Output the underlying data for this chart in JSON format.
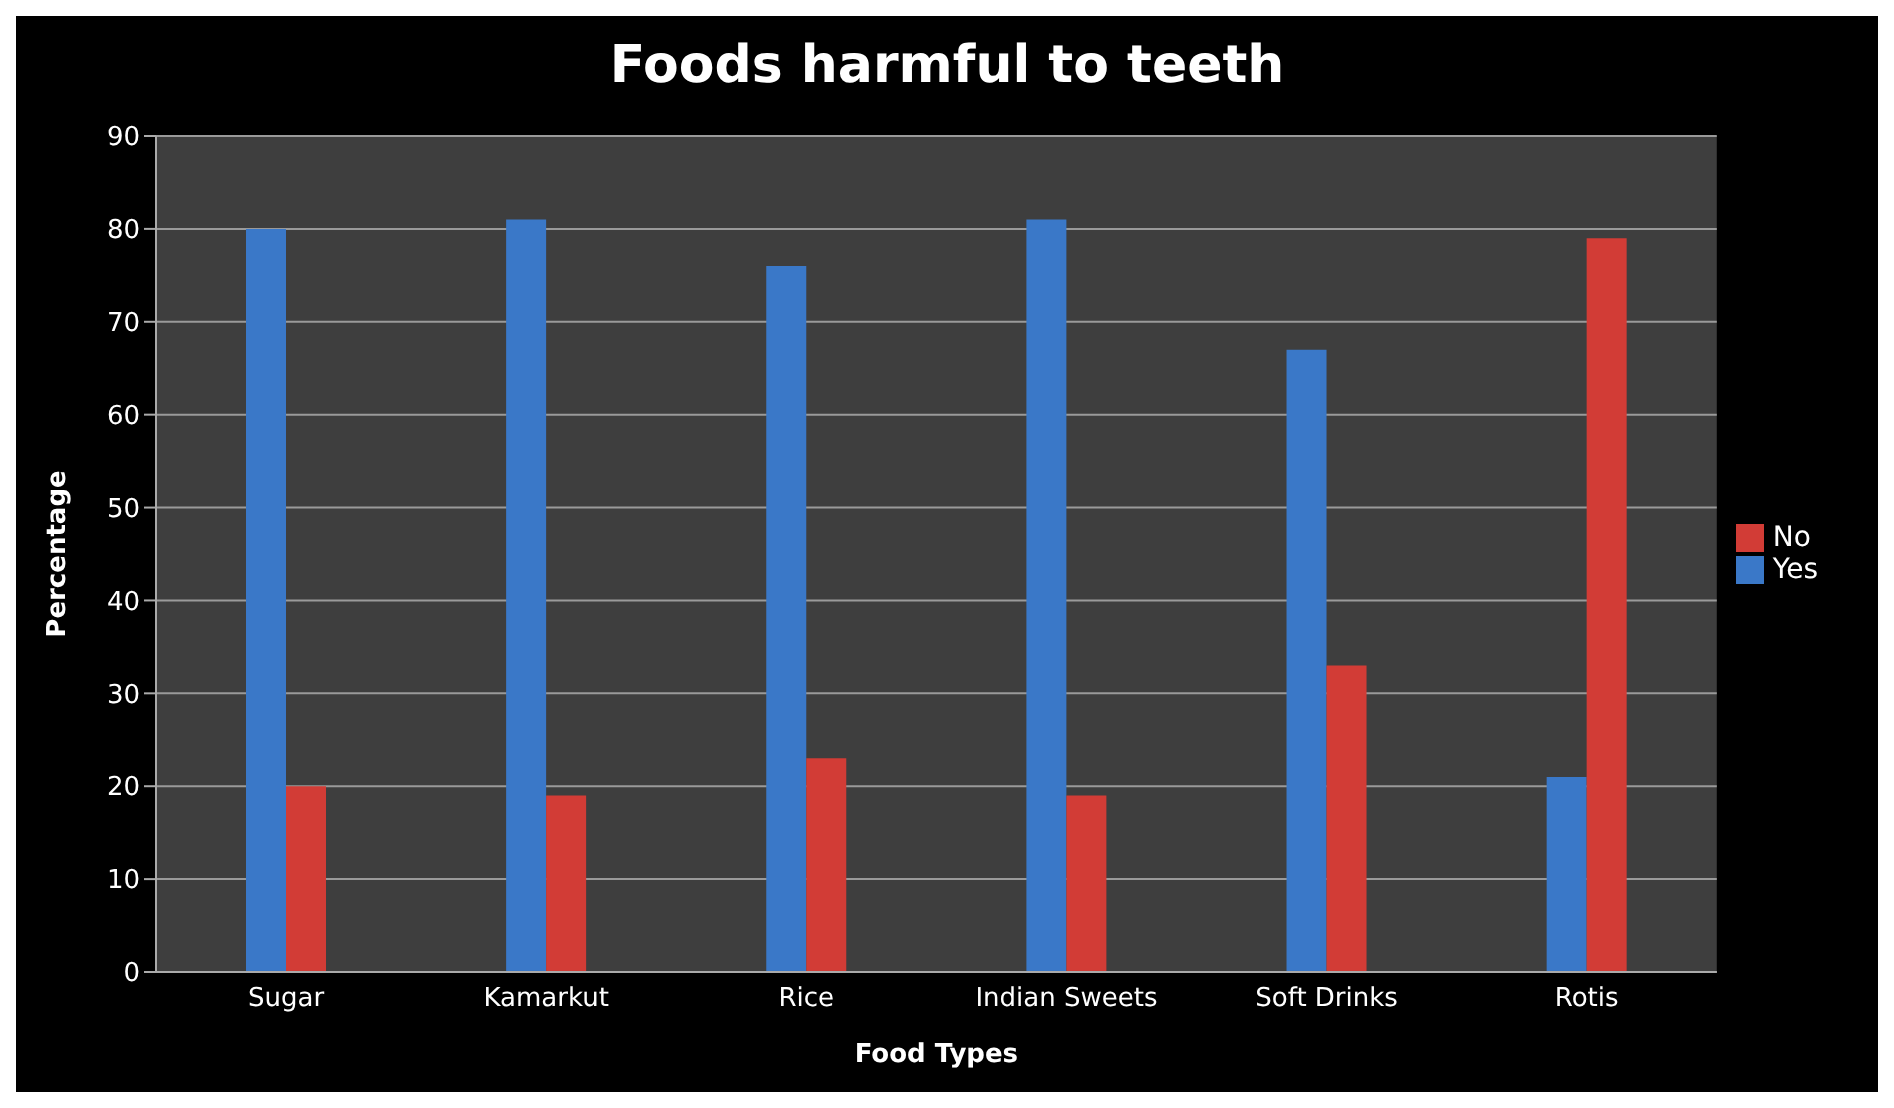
{
  "chart_data": {
    "type": "bar",
    "title": "Foods harmful to teeth",
    "xlabel": "Food Types",
    "ylabel": "Percentage",
    "categories": [
      "Sugar",
      "Kamarkut",
      "Rice",
      "Indian Sweets",
      "Soft Drinks",
      "Rotis"
    ],
    "series": [
      {
        "name": "Yes",
        "color": "#3a78c8",
        "values": [
          80,
          81,
          76,
          81,
          67,
          21
        ]
      },
      {
        "name": "No",
        "color": "#d23c36",
        "values": [
          20,
          19,
          23,
          19,
          33,
          79
        ]
      }
    ],
    "ylim": [
      0,
      90
    ],
    "yticks": [
      0,
      10,
      20,
      30,
      40,
      50,
      60,
      70,
      80,
      90
    ],
    "grid": "y",
    "legend": "right"
  }
}
